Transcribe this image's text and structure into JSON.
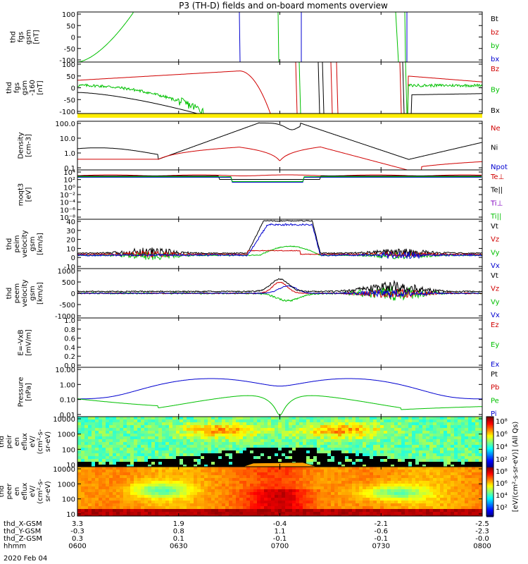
{
  "title": "P3 (TH-D) fields and on-board moments overview",
  "chart_data": [
    {
      "type": "line",
      "panel": "fgs_gsm",
      "ylabel": [
        "thd",
        "fgs",
        "gsm",
        "[nT]"
      ],
      "yticks": [
        "100",
        "50",
        "0",
        "-50",
        "-100"
      ],
      "ylim": [
        -100,
        100
      ],
      "legend": [
        {
          "name": "Bt",
          "color": "#000000"
        },
        {
          "name": "bz",
          "color": "#d00000"
        },
        {
          "name": "by",
          "color": "#00c000"
        },
        {
          "name": "bx",
          "color": "#0000d0"
        }
      ]
    },
    {
      "type": "line",
      "panel": "fgs_gsm_zoom",
      "ylabel": [
        "thd",
        "fgs",
        "gsm",
        "-160",
        "[nT]"
      ],
      "yticks": [
        "100",
        "50",
        "0",
        "-50",
        "-100"
      ],
      "ylim": [
        -120,
        100
      ],
      "legend": [
        {
          "name": "Bz",
          "color": "#d00000"
        },
        {
          "name": "By",
          "color": "#00c000"
        },
        {
          "name": "Bx",
          "color": "#000000"
        }
      ]
    },
    {
      "type": "line",
      "panel": "density",
      "ylabel": [
        "Density",
        "[cm-3]"
      ],
      "yticks": [
        "100.0",
        "10.0",
        "1.0",
        "0.1"
      ],
      "scale": "log",
      "ylim": [
        0.07,
        200
      ],
      "legend": [
        {
          "name": "Ne",
          "color": "#d00000"
        },
        {
          "name": "Ni",
          "color": "#000000"
        },
        {
          "name": "Npot",
          "color": "#0000d0"
        }
      ]
    },
    {
      "type": "line",
      "panel": "temperature",
      "ylabel": [
        "moqt3",
        "[eV]"
      ],
      "yticks": [
        "10⁴",
        "10²",
        "10⁰",
        "10⁻²",
        "10⁻⁴",
        "10⁻⁶",
        "10⁻⁸"
      ],
      "scale": "log",
      "legend": [
        {
          "name": "Te⊥",
          "color": "#d00000"
        },
        {
          "name": "Te||",
          "color": "#000000"
        },
        {
          "name": "Ti⊥",
          "color": "#8000c0"
        },
        {
          "name": "Ti||",
          "color": "#00c000"
        }
      ]
    },
    {
      "type": "line",
      "panel": "peim_velocity",
      "ylabel": [
        "thd",
        "peim",
        "velocity",
        "gsm",
        "[km/s]"
      ],
      "yticks": [
        "40",
        "30",
        "20",
        "10",
        "0",
        "-10"
      ],
      "ylim": [
        -15,
        40
      ],
      "legend": [
        {
          "name": "Vt",
          "color": "#000000"
        },
        {
          "name": "Vz",
          "color": "#d00000"
        },
        {
          "name": "Vy",
          "color": "#00c000"
        },
        {
          "name": "Vx",
          "color": "#0000d0"
        }
      ]
    },
    {
      "type": "line",
      "panel": "peem_velocity",
      "ylabel": [
        "thd",
        "peem",
        "velocity",
        "gsm",
        "[km/s]"
      ],
      "yticks": [
        "1000",
        "500",
        "0",
        "-500",
        "-1000"
      ],
      "ylim": [
        -1000,
        1000
      ],
      "legend": [
        {
          "name": "Vt",
          "color": "#000000"
        },
        {
          "name": "Vz",
          "color": "#d00000"
        },
        {
          "name": "Vy",
          "color": "#00c000"
        },
        {
          "name": "Vx",
          "color": "#0000d0"
        }
      ]
    },
    {
      "type": "line",
      "panel": "efield",
      "ylabel": [
        "E=-VxB",
        "[mV/m]"
      ],
      "yticks": [
        "1.0",
        "0.8",
        "0.6",
        "0.4",
        "0.2",
        "0.0"
      ],
      "ylim": [
        0,
        1
      ],
      "legend": [
        {
          "name": "Ez",
          "color": "#d00000"
        },
        {
          "name": "Ey",
          "color": "#00c000"
        },
        {
          "name": "Ex",
          "color": "#0000d0"
        }
      ]
    },
    {
      "type": "line",
      "panel": "pressure",
      "ylabel": [
        "Pressure",
        "[nPa]"
      ],
      "yticks": [
        "10.00",
        "1.00",
        "0.10",
        "0.01"
      ],
      "scale": "log",
      "legend": [
        {
          "name": "Pt",
          "color": "#000000"
        },
        {
          "name": "Pb",
          "color": "#d00000"
        },
        {
          "name": "Pe",
          "color": "#00c000"
        },
        {
          "name": "Pi",
          "color": "#0000d0"
        }
      ]
    },
    {
      "type": "heatmap",
      "panel": "peir_en_eflux",
      "ylabel": [
        "thd",
        "peir",
        "en",
        "eflux",
        "eV/",
        "(cm²-s-",
        "sr-eV)"
      ],
      "yticks": [
        "10000",
        "1000",
        "100",
        "10"
      ],
      "scale": "log"
    },
    {
      "type": "heatmap",
      "panel": "peer_en_eflux",
      "ylabel": [
        "thd",
        "peer",
        "en",
        "eflux",
        "eV/",
        "(cm²-s-",
        "sr-eV)"
      ],
      "yticks": [
        "10000",
        "1000",
        "100",
        "10"
      ],
      "scale": "log"
    }
  ],
  "colorbar": {
    "ticks_top": [
      "10⁸",
      "10⁶",
      "10⁴",
      "10²"
    ],
    "ticks_bottom": [
      "10⁸",
      "10⁶",
      "10⁴",
      "10²"
    ],
    "label": "[eV/(cm²-s-sr-eV)] (All Qs)"
  },
  "x_axis": {
    "rows": [
      {
        "label": "thd_X-GSM",
        "values": [
          "3.3",
          "1.9",
          "-0.4",
          "-2.1",
          "-2.5"
        ]
      },
      {
        "label": "thd_Y-GSM",
        "values": [
          "-0.3",
          "0.8",
          "1.1",
          "-0.6",
          "-2.3"
        ]
      },
      {
        "label": "thd_Z-GSM",
        "values": [
          "0.3",
          "0.1",
          "-0.1",
          "-0.1",
          "-0.0"
        ]
      },
      {
        "label": "hhmm",
        "values": [
          "0600",
          "0630",
          "0700",
          "0730",
          "0800"
        ]
      }
    ],
    "date": "2020 Feb 04"
  }
}
